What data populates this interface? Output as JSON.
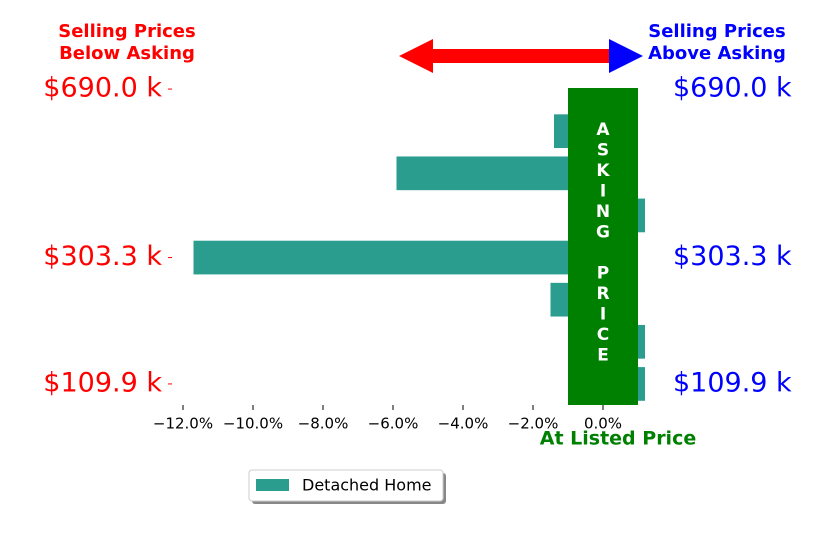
{
  "chart_data": {
    "type": "barh",
    "left_note": [
      "Selling Prices",
      "Below Asking"
    ],
    "right_note": [
      "Selling Prices",
      "Above Asking"
    ],
    "band_label": "ASKING PRICE",
    "x_label": "At Listed Price",
    "categories": [
      "$109.9 k",
      null,
      null,
      "$303.3 k",
      null,
      null,
      null,
      "$690.0 k"
    ],
    "series": [
      {
        "name": "Detached Home",
        "color": "#2a9d8f",
        "values": [
          1.2,
          1.2,
          -1.5,
          -11.7,
          1.2,
          -5.9,
          -1.4,
          0
        ]
      }
    ],
    "xlim": [
      -12.5,
      1.5
    ],
    "xticks": [
      {
        "value": -12,
        "label": "−12.0%"
      },
      {
        "value": -10,
        "label": "−10.0%"
      },
      {
        "value": -8,
        "label": "−8.0%"
      },
      {
        "value": -6,
        "label": "−6.0%"
      },
      {
        "value": -4,
        "label": "−4.0%"
      },
      {
        "value": -2,
        "label": "−2.0%"
      },
      {
        "value": 0,
        "label": "0.0%"
      }
    ],
    "band_range": [
      -1,
      1
    ],
    "band_color": "#008000",
    "legend": "lower left"
  }
}
